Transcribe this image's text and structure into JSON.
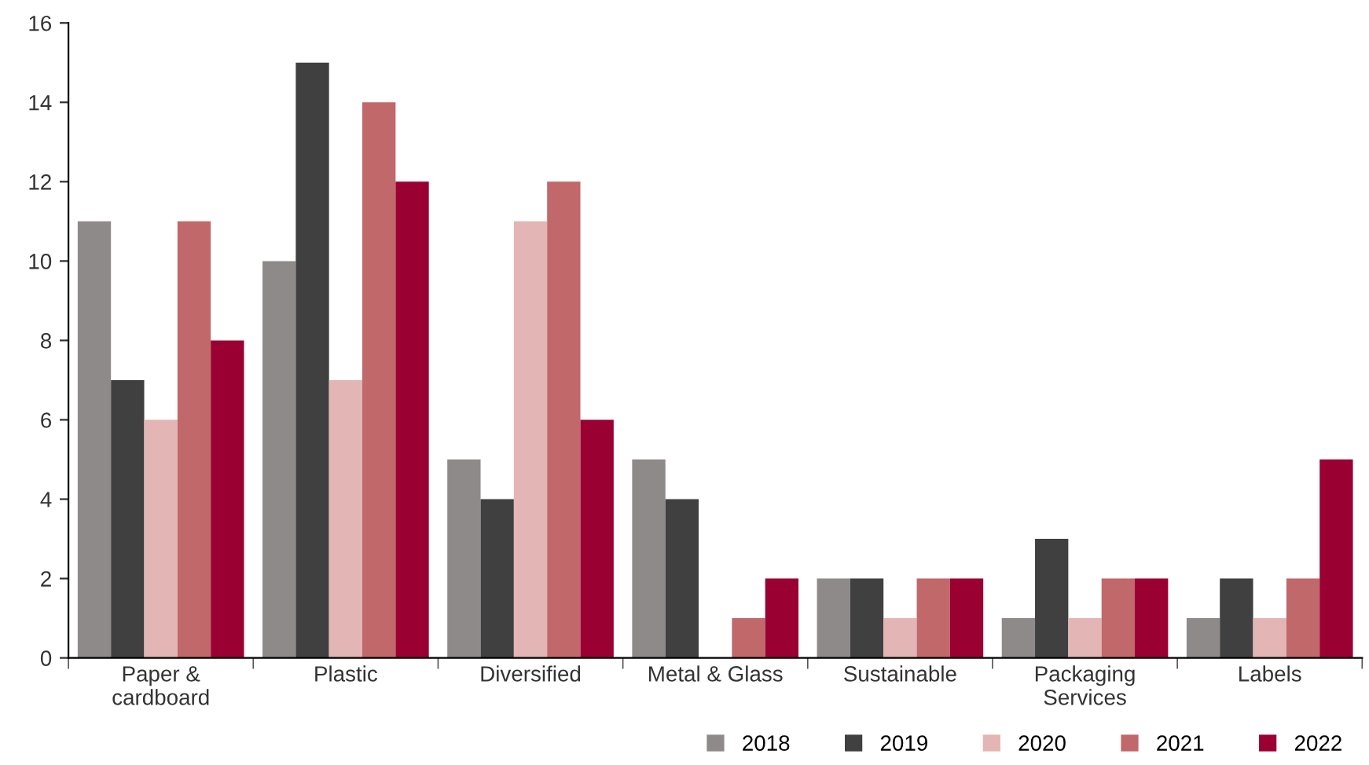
{
  "chart_data": {
    "type": "bar",
    "categories": [
      "Paper &\ncardboard",
      "Plastic",
      "Diversified",
      "Metal & Glass",
      "Sustainable",
      "Packaging\nServices",
      "Labels"
    ],
    "series": [
      {
        "name": "2018",
        "color": "#8f8a8a",
        "values": [
          11,
          10,
          5,
          5,
          2,
          1,
          1
        ]
      },
      {
        "name": "2019",
        "color": "#404040",
        "values": [
          7,
          15,
          4,
          4,
          2,
          3,
          2
        ]
      },
      {
        "name": "2020",
        "color": "#e4b5b5",
        "values": [
          6,
          7,
          11,
          0,
          1,
          1,
          1
        ]
      },
      {
        "name": "2021",
        "color": "#c0686a",
        "values": [
          11,
          14,
          12,
          1,
          2,
          2,
          2
        ]
      },
      {
        "name": "2022",
        "color": "#9b0032",
        "values": [
          8,
          12,
          6,
          2,
          2,
          2,
          5
        ]
      }
    ],
    "ylim": [
      0,
      16
    ],
    "yticks": [
      0,
      2,
      4,
      6,
      8,
      10,
      12,
      14,
      16
    ],
    "grid": false,
    "legend": "bottom right"
  }
}
